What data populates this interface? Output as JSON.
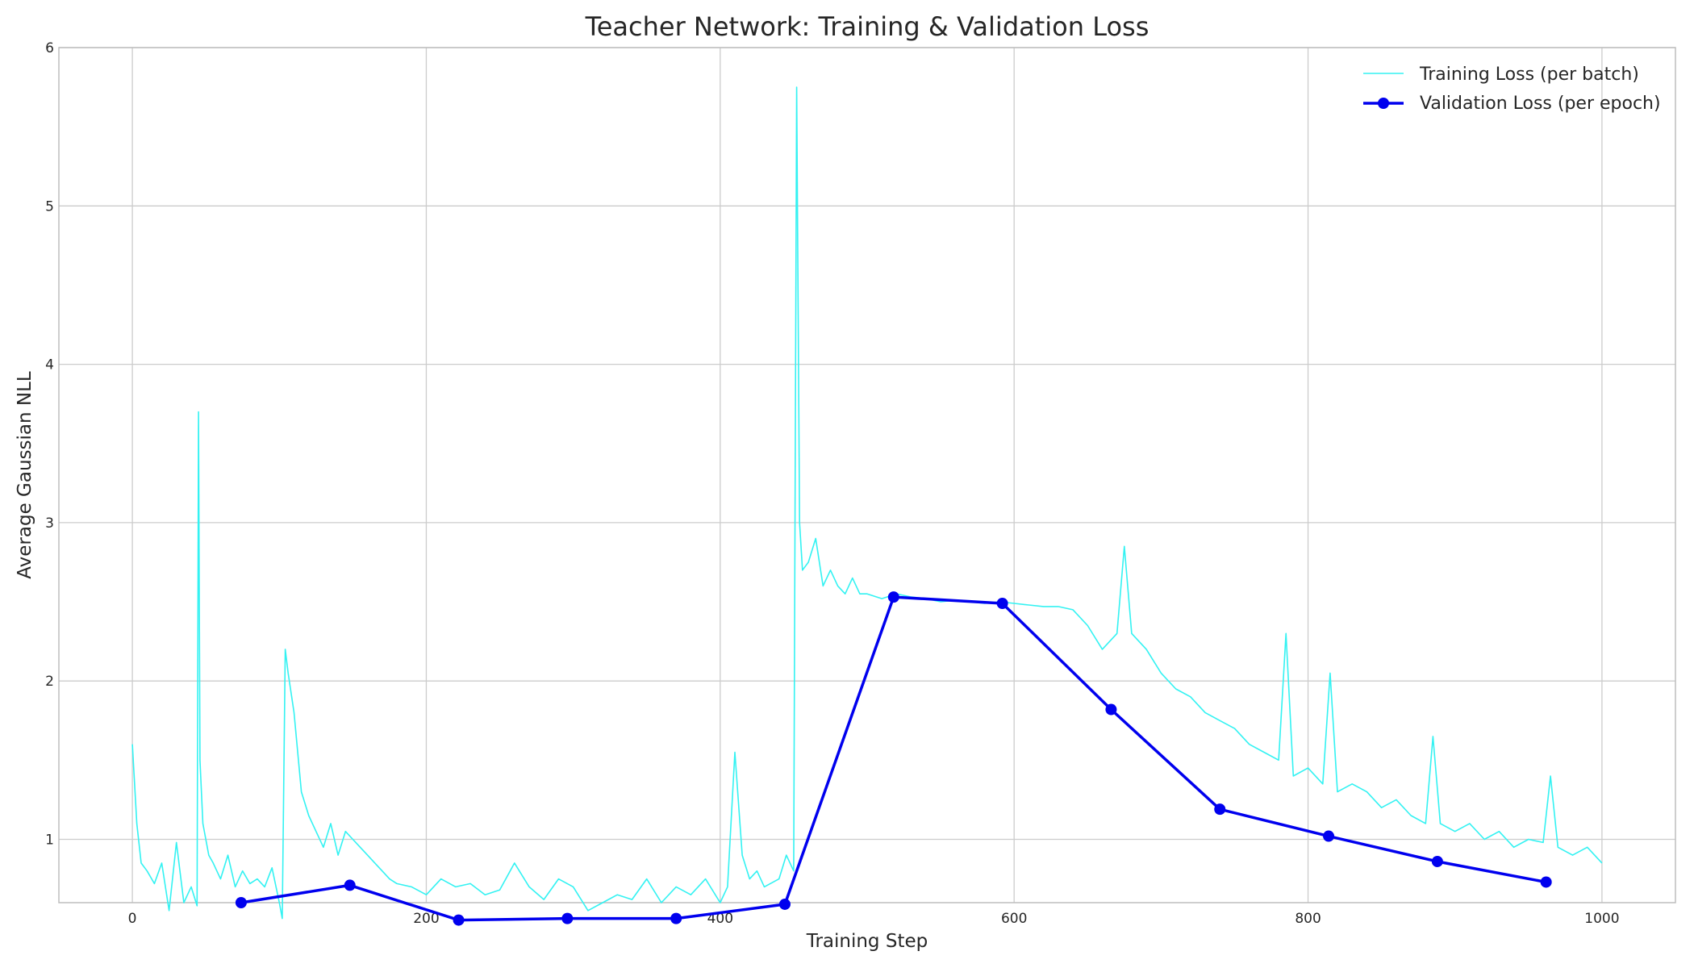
{
  "chart_data": {
    "type": "line",
    "title": "Teacher Network: Training & Validation Loss",
    "xlabel": "Training Step",
    "ylabel": "Average Gaussian NLL",
    "xlim": [
      -50,
      1050
    ],
    "ylim": [
      0.6,
      6.0
    ],
    "xticks": [
      0,
      200,
      400,
      600,
      800,
      1000
    ],
    "yticks": [
      1,
      2,
      3,
      4,
      5,
      6
    ],
    "grid": true,
    "legend_position": "top-right",
    "colors": {
      "training": "#33f2f2",
      "validation": "#0000ee",
      "grid": "#cccccc",
      "axes": "#bdbdbd"
    },
    "series": [
      {
        "name": "Training Loss (per batch)",
        "style": "line",
        "points": [
          [
            0,
            1.6
          ],
          [
            3,
            1.1
          ],
          [
            6,
            0.85
          ],
          [
            10,
            0.8
          ],
          [
            15,
            0.72
          ],
          [
            20,
            0.85
          ],
          [
            25,
            0.55
          ],
          [
            30,
            0.98
          ],
          [
            35,
            0.6
          ],
          [
            40,
            0.7
          ],
          [
            44,
            0.58
          ],
          [
            45,
            3.7
          ],
          [
            46,
            1.5
          ],
          [
            48,
            1.1
          ],
          [
            52,
            0.9
          ],
          [
            55,
            0.85
          ],
          [
            60,
            0.75
          ],
          [
            65,
            0.9
          ],
          [
            70,
            0.7
          ],
          [
            75,
            0.8
          ],
          [
            80,
            0.72
          ],
          [
            85,
            0.75
          ],
          [
            90,
            0.7
          ],
          [
            95,
            0.82
          ],
          [
            100,
            0.6
          ],
          [
            102,
            0.5
          ],
          [
            104,
            2.2
          ],
          [
            106,
            2.05
          ],
          [
            110,
            1.8
          ],
          [
            115,
            1.3
          ],
          [
            120,
            1.15
          ],
          [
            125,
            1.05
          ],
          [
            130,
            0.95
          ],
          [
            135,
            1.1
          ],
          [
            140,
            0.9
          ],
          [
            145,
            1.05
          ],
          [
            150,
            1.0
          ],
          [
            155,
            0.95
          ],
          [
            160,
            0.9
          ],
          [
            165,
            0.85
          ],
          [
            170,
            0.8
          ],
          [
            175,
            0.75
          ],
          [
            180,
            0.72
          ],
          [
            190,
            0.7
          ],
          [
            200,
            0.65
          ],
          [
            210,
            0.75
          ],
          [
            220,
            0.7
          ],
          [
            230,
            0.72
          ],
          [
            240,
            0.65
          ],
          [
            250,
            0.68
          ],
          [
            260,
            0.85
          ],
          [
            270,
            0.7
          ],
          [
            280,
            0.62
          ],
          [
            290,
            0.75
          ],
          [
            300,
            0.7
          ],
          [
            310,
            0.55
          ],
          [
            320,
            0.6
          ],
          [
            330,
            0.65
          ],
          [
            340,
            0.62
          ],
          [
            350,
            0.75
          ],
          [
            360,
            0.6
          ],
          [
            370,
            0.7
          ],
          [
            380,
            0.65
          ],
          [
            390,
            0.75
          ],
          [
            400,
            0.6
          ],
          [
            405,
            0.7
          ],
          [
            410,
            1.55
          ],
          [
            415,
            0.9
          ],
          [
            420,
            0.75
          ],
          [
            425,
            0.8
          ],
          [
            430,
            0.7
          ],
          [
            440,
            0.75
          ],
          [
            445,
            0.9
          ],
          [
            450,
            0.8
          ],
          [
            452,
            5.75
          ],
          [
            454,
            3.0
          ],
          [
            456,
            2.7
          ],
          [
            460,
            2.75
          ],
          [
            465,
            2.9
          ],
          [
            470,
            2.6
          ],
          [
            475,
            2.7
          ],
          [
            480,
            2.6
          ],
          [
            485,
            2.55
          ],
          [
            490,
            2.65
          ],
          [
            495,
            2.55
          ],
          [
            500,
            2.55
          ],
          [
            510,
            2.52
          ],
          [
            520,
            2.55
          ],
          [
            530,
            2.53
          ],
          [
            540,
            2.52
          ],
          [
            550,
            2.5
          ],
          [
            560,
            2.51
          ],
          [
            570,
            2.5
          ],
          [
            580,
            2.49
          ],
          [
            590,
            2.5
          ],
          [
            600,
            2.49
          ],
          [
            610,
            2.48
          ],
          [
            620,
            2.47
          ],
          [
            630,
            2.47
          ],
          [
            640,
            2.45
          ],
          [
            650,
            2.35
          ],
          [
            660,
            2.2
          ],
          [
            670,
            2.3
          ],
          [
            675,
            2.85
          ],
          [
            680,
            2.3
          ],
          [
            690,
            2.2
          ],
          [
            700,
            2.05
          ],
          [
            710,
            1.95
          ],
          [
            720,
            1.9
          ],
          [
            730,
            1.8
          ],
          [
            740,
            1.75
          ],
          [
            750,
            1.7
          ],
          [
            760,
            1.6
          ],
          [
            770,
            1.55
          ],
          [
            780,
            1.5
          ],
          [
            785,
            2.3
          ],
          [
            790,
            1.4
          ],
          [
            800,
            1.45
          ],
          [
            810,
            1.35
          ],
          [
            815,
            2.05
          ],
          [
            820,
            1.3
          ],
          [
            830,
            1.35
          ],
          [
            840,
            1.3
          ],
          [
            850,
            1.2
          ],
          [
            860,
            1.25
          ],
          [
            870,
            1.15
          ],
          [
            880,
            1.1
          ],
          [
            885,
            1.65
          ],
          [
            890,
            1.1
          ],
          [
            900,
            1.05
          ],
          [
            910,
            1.1
          ],
          [
            920,
            1.0
          ],
          [
            930,
            1.05
          ],
          [
            940,
            0.95
          ],
          [
            950,
            1.0
          ],
          [
            960,
            0.98
          ],
          [
            965,
            1.4
          ],
          [
            970,
            0.95
          ],
          [
            980,
            0.9
          ],
          [
            990,
            0.95
          ],
          [
            1000,
            0.85
          ]
        ]
      },
      {
        "name": "Validation Loss (per epoch)",
        "style": "line+marker",
        "points": [
          [
            74,
            0.6
          ],
          [
            148,
            0.71
          ],
          [
            222,
            0.49
          ],
          [
            296,
            0.5
          ],
          [
            370,
            0.5
          ],
          [
            444,
            0.59
          ],
          [
            518,
            2.53
          ],
          [
            592,
            2.49
          ],
          [
            666,
            1.82
          ],
          [
            740,
            1.19
          ],
          [
            814,
            1.02
          ],
          [
            888,
            0.86
          ],
          [
            962,
            0.73
          ]
        ]
      }
    ]
  }
}
